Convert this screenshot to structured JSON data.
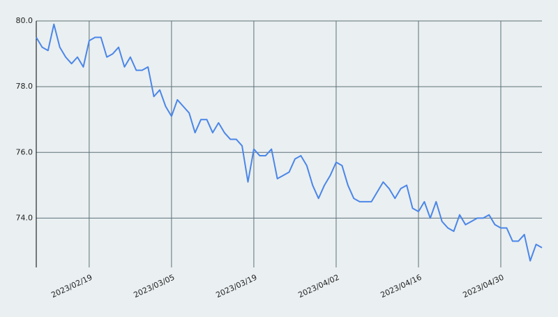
{
  "chart_data": {
    "type": "line",
    "x": [
      "2023-02-10",
      "2023-02-11",
      "2023-02-12",
      "2023-02-13",
      "2023-02-14",
      "2023-02-15",
      "2023-02-16",
      "2023-02-17",
      "2023-02-18",
      "2023-02-19",
      "2023-02-20",
      "2023-02-21",
      "2023-02-22",
      "2023-02-23",
      "2023-02-24",
      "2023-02-25",
      "2023-02-26",
      "2023-02-27",
      "2023-02-28",
      "2023-03-01",
      "2023-03-02",
      "2023-03-03",
      "2023-03-04",
      "2023-03-05",
      "2023-03-06",
      "2023-03-07",
      "2023-03-08",
      "2023-03-09",
      "2023-03-10",
      "2023-03-11",
      "2023-03-12",
      "2023-03-13",
      "2023-03-14",
      "2023-03-15",
      "2023-03-16",
      "2023-03-17",
      "2023-03-18",
      "2023-03-19",
      "2023-03-20",
      "2023-03-21",
      "2023-03-22",
      "2023-03-23",
      "2023-03-24",
      "2023-03-25",
      "2023-03-26",
      "2023-03-27",
      "2023-03-28",
      "2023-03-29",
      "2023-03-30",
      "2023-03-31",
      "2023-04-01",
      "2023-04-02",
      "2023-04-03",
      "2023-04-04",
      "2023-04-05",
      "2023-04-06",
      "2023-04-07",
      "2023-04-08",
      "2023-04-09",
      "2023-04-10",
      "2023-04-11",
      "2023-04-12",
      "2023-04-13",
      "2023-04-14",
      "2023-04-15",
      "2023-04-16",
      "2023-04-17",
      "2023-04-18",
      "2023-04-19",
      "2023-04-20",
      "2023-04-21",
      "2023-04-22",
      "2023-04-23",
      "2023-04-24",
      "2023-04-25",
      "2023-04-26",
      "2023-04-27",
      "2023-04-28",
      "2023-04-29",
      "2023-04-30",
      "2023-05-01",
      "2023-05-02",
      "2023-05-03",
      "2023-05-04",
      "2023-05-05",
      "2023-05-06",
      "2023-05-07"
    ],
    "series": [
      {
        "color": "#4a86e8",
        "values": [
          79.5,
          79.2,
          79.1,
          79.9,
          79.2,
          78.9,
          78.7,
          78.9,
          78.6,
          79.4,
          79.5,
          79.5,
          78.9,
          79.0,
          79.2,
          78.6,
          78.9,
          78.5,
          78.5,
          78.6,
          77.7,
          77.9,
          77.4,
          77.1,
          77.6,
          77.4,
          77.2,
          76.6,
          77.0,
          77.0,
          76.6,
          76.9,
          76.6,
          76.4,
          76.4,
          76.2,
          75.1,
          76.1,
          75.9,
          75.9,
          76.1,
          75.2,
          75.3,
          75.4,
          75.8,
          75.9,
          75.6,
          75.0,
          74.6,
          75.0,
          75.3,
          75.7,
          75.6,
          75.0,
          74.6,
          74.5,
          74.5,
          74.5,
          74.8,
          75.1,
          74.9,
          74.6,
          74.9,
          75.0,
          74.3,
          74.2,
          74.5,
          74.0,
          74.5,
          73.9,
          73.7,
          73.6,
          74.1,
          73.8,
          73.9,
          74.0,
          74.0,
          74.1,
          73.8,
          73.7,
          73.7,
          73.3,
          73.3,
          73.5,
          72.7,
          73.2,
          73.1
        ]
      }
    ],
    "xlim": [
      "2023-02-10",
      "2023-05-07"
    ],
    "xticks": [
      {
        "value": "2023-02-19",
        "label": "2023/02/19"
      },
      {
        "value": "2023-03-05",
        "label": "2023/03/05"
      },
      {
        "value": "2023-03-19",
        "label": "2023/03/19"
      },
      {
        "value": "2023-04-02",
        "label": "2023/04/02"
      },
      {
        "value": "2023-04-16",
        "label": "2023/04/16"
      },
      {
        "value": "2023-04-30",
        "label": "2023/04/30"
      }
    ],
    "ylim": [
      72.5,
      80
    ],
    "yticks": [
      {
        "value": 74,
        "label": "74.0"
      },
      {
        "value": 76,
        "label": "76.0"
      },
      {
        "value": 78,
        "label": "78.0"
      },
      {
        "value": 80,
        "label": "80.0"
      }
    ],
    "grid": true
  }
}
